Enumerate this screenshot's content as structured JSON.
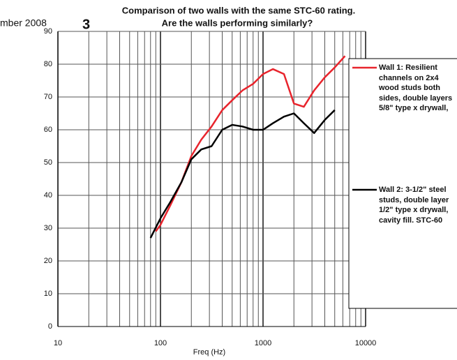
{
  "page": {
    "header_fragment": "mber 2008",
    "page_number": "3"
  },
  "chart_data": {
    "type": "line",
    "title": [
      "Comparison of two walls with the same STC-60 rating.",
      "Are the walls performing similarly?"
    ],
    "x_label": "Freq (Hz)",
    "log_x": true,
    "xlim": [
      10,
      10000
    ],
    "xticks": [
      10,
      100,
      1000,
      10000
    ],
    "xminorticks": [
      20,
      30,
      40,
      50,
      60,
      70,
      80,
      90,
      200,
      300,
      400,
      500,
      600,
      700,
      800,
      900,
      2000,
      3000,
      4000,
      5000,
      6000,
      7000,
      8000,
      9000
    ],
    "ylim": [
      0,
      90
    ],
    "yticks": [
      0,
      10,
      20,
      30,
      40,
      50,
      60,
      70,
      80,
      90
    ],
    "grid": true,
    "legend": "right",
    "series": [
      {
        "name": "Wall 1: Resilient channels on 2x4 wood studs both sides, double layers 5/8\" type x drywall,",
        "color": "#e8242c",
        "x": [
          90,
          100,
          125,
          160,
          200,
          250,
          315,
          400,
          500,
          630,
          800,
          1000,
          1250,
          1600,
          2000,
          2500,
          3150,
          4000,
          5000,
          6300
        ],
        "values": [
          29,
          31,
          37,
          44,
          52,
          57,
          61,
          66,
          69,
          72,
          74,
          77,
          78.5,
          77,
          68,
          67,
          72,
          76,
          79,
          82.5
        ]
      },
      {
        "name": "Wall 2: 3-1/2\" steel studs, double layer 1/2\" type x drywall, cavity fill. STC-60",
        "color": "#000000",
        "x": [
          80,
          100,
          125,
          160,
          200,
          250,
          315,
          400,
          500,
          630,
          800,
          1000,
          1250,
          1600,
          2000,
          2500,
          3150,
          4000,
          5000
        ],
        "values": [
          27,
          33,
          38,
          44,
          51,
          54,
          55,
          60,
          61.5,
          61,
          60,
          60,
          62,
          64,
          65,
          62,
          59,
          63,
          66
        ]
      }
    ]
  }
}
